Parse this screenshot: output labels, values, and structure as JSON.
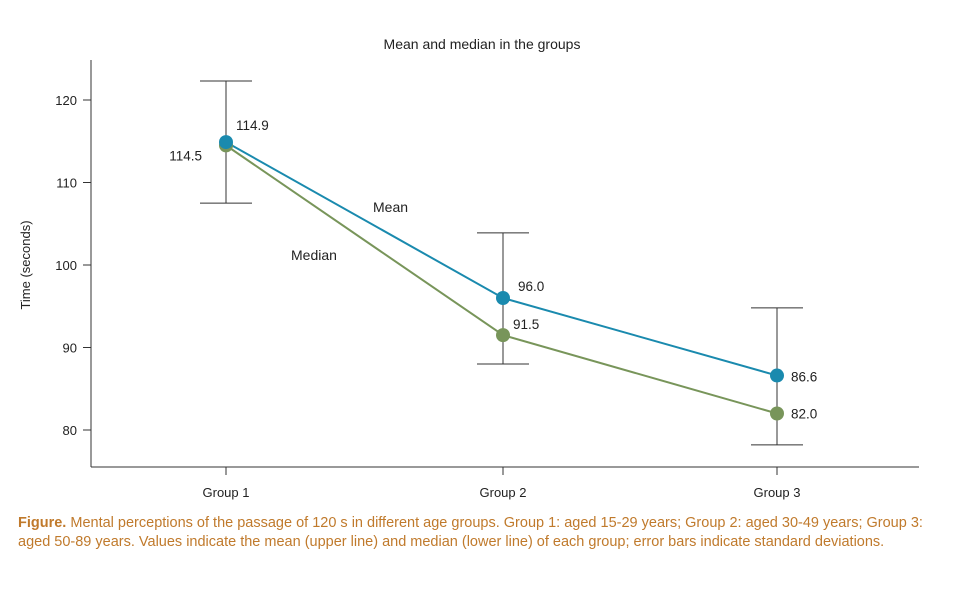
{
  "chart_data": {
    "type": "line",
    "title": "Mean and median in the groups",
    "xlabel": "",
    "ylabel": "Time (seconds)",
    "categories": [
      "Group 1",
      "Group 2",
      "Group 3"
    ],
    "ylim": [
      75,
      125
    ],
    "yticks": [
      80,
      90,
      100,
      110,
      120
    ],
    "series": [
      {
        "name": "Mean",
        "color": "#1a8aae",
        "values": [
          114.9,
          96.0,
          86.6
        ],
        "value_labels": [
          "114.9",
          "96.0",
          "86.6"
        ],
        "error_low": [
          107.5,
          88.0,
          78.2
        ],
        "error_high": [
          122.3,
          103.9,
          94.8
        ]
      },
      {
        "name": "Median",
        "color": "#78955a",
        "values": [
          114.5,
          91.5,
          82.0
        ],
        "value_labels": [
          "114.5",
          "91.5",
          "82.0"
        ]
      }
    ],
    "grid": false,
    "legend": "inline labels near lines"
  },
  "caption": {
    "lead": "Figure.",
    "text": " Mental perceptions of the passage of 120 s in different age groups. Group 1: aged 15-29 years; Group 2: aged 30-49 years; Group 3: aged 50-89 years. Values indicate the mean (upper line) and median (lower line) of each group; error bars indicate standard deviations."
  }
}
